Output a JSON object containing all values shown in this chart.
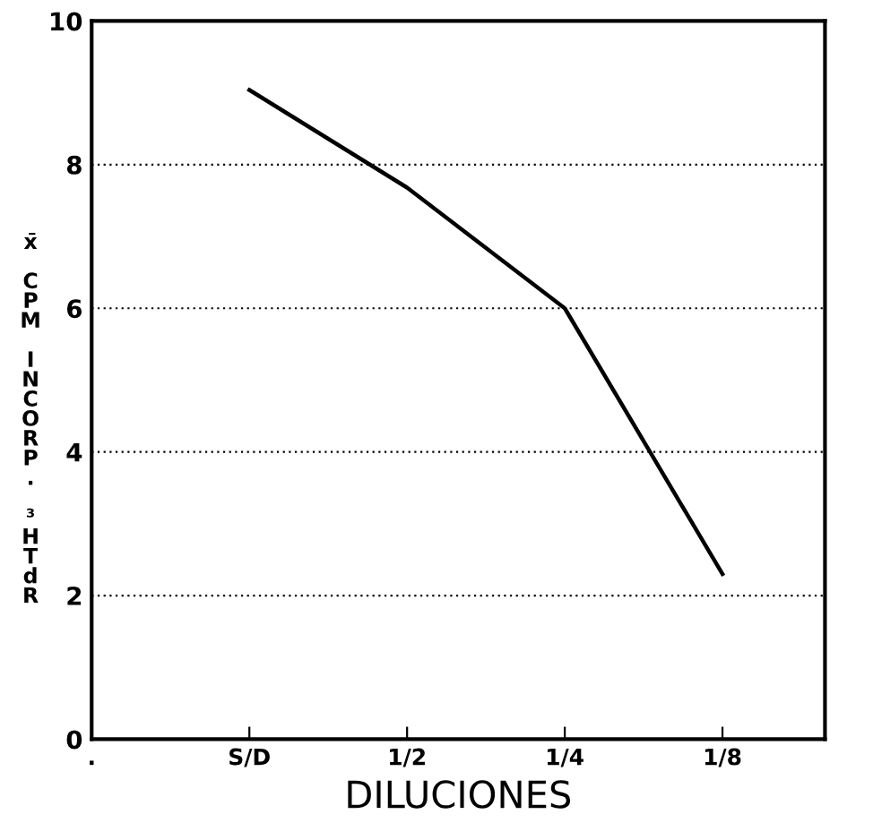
{
  "chart_data": {
    "type": "line",
    "xlabel": "DILUCIONES",
    "ylabel": "x̄ CPM INCORP. ³HTdR",
    "categories": [
      ".",
      "S/D",
      "1/2",
      "1/4",
      "1/8"
    ],
    "series": [
      {
        "color": "#000000",
        "values": [
          null,
          9.04,
          7.68,
          6.0,
          2.3
        ]
      }
    ],
    "ylim": [
      0,
      10
    ],
    "yticks": [
      0,
      2,
      4,
      6,
      8,
      10
    ],
    "grid": "y",
    "marker": "none",
    "line_style": "solid"
  }
}
